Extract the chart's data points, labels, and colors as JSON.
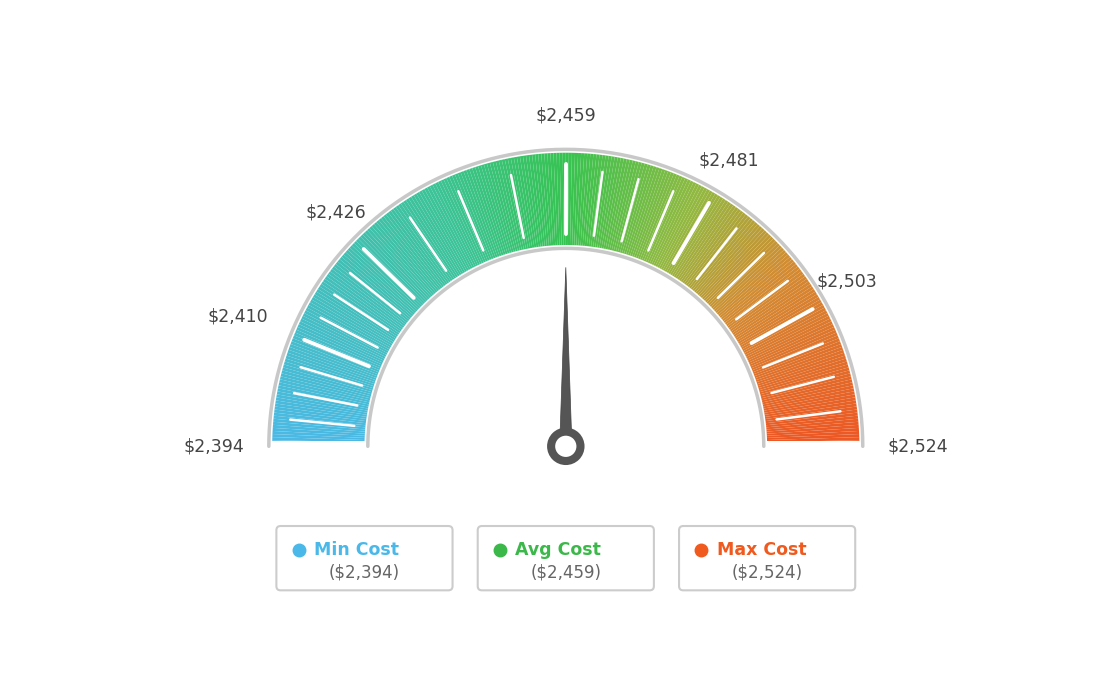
{
  "min_value": 2394,
  "avg_value": 2459,
  "max_value": 2524,
  "tick_labels": [
    "$2,394",
    "$2,410",
    "$2,426",
    "$2,459",
    "$2,481",
    "$2,503",
    "$2,524"
  ],
  "tick_values": [
    2394,
    2410,
    2426,
    2459,
    2481,
    2503,
    2524
  ],
  "legend_items": [
    {
      "label": "Min Cost",
      "value": "($2,394)",
      "color": "#4ab8e8"
    },
    {
      "label": "Avg Cost",
      "value": "($2,459)",
      "color": "#3cb84a"
    },
    {
      "label": "Max Cost",
      "value": "($2,524)",
      "color": "#f05a1e"
    }
  ],
  "background_color": "#ffffff",
  "needle_value": 2459,
  "color_stops": [
    [
      0.0,
      [
        75,
        185,
        230
      ]
    ],
    [
      0.35,
      [
        60,
        195,
        150
      ]
    ],
    [
      0.5,
      [
        55,
        195,
        80
      ]
    ],
    [
      0.65,
      [
        145,
        185,
        65
      ]
    ],
    [
      0.78,
      [
        210,
        140,
        50
      ]
    ],
    [
      1.0,
      [
        238,
        85,
        35
      ]
    ]
  ]
}
